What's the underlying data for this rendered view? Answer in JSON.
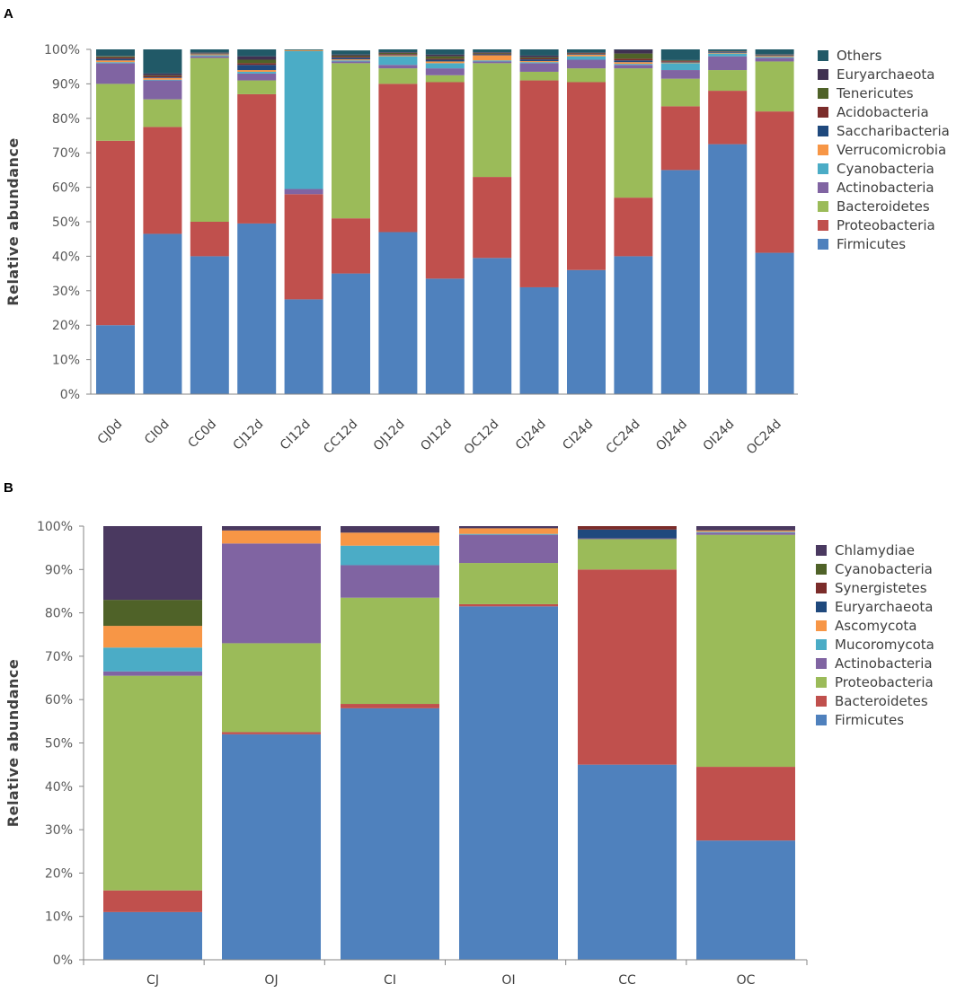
{
  "chart_data": [
    {
      "panel": "A",
      "type": "bar",
      "stacked": true,
      "title": "",
      "xlabel": "",
      "ylabel": "Relative abundance",
      "ylim": [
        0,
        100
      ],
      "yticks": [
        "0%",
        "10%",
        "20%",
        "30%",
        "40%",
        "50%",
        "60%",
        "70%",
        "80%",
        "90%",
        "100%"
      ],
      "legend_position": "right",
      "categories": [
        "CJ0d",
        "CI0d",
        "CC0d",
        "CJ12d",
        "CI12d",
        "CC12d",
        "OJ12d",
        "OI12d",
        "OC12d",
        "CJ24d",
        "CI24d",
        "CC24d",
        "OJ24d",
        "OI24d",
        "OC24d"
      ],
      "series": [
        {
          "name": "Firmicutes",
          "color": "#4F81BD",
          "values": [
            20,
            46.5,
            40,
            49.5,
            27.5,
            35,
            47,
            33.5,
            39.5,
            31,
            36,
            40,
            65,
            72.5,
            41
          ]
        },
        {
          "name": "Proteobacteria",
          "color": "#C0504D",
          "values": [
            53.5,
            31,
            10,
            37.5,
            30.5,
            16,
            43,
            57,
            23.5,
            60,
            54.5,
            17,
            18.5,
            15.5,
            41
          ]
        },
        {
          "name": "Bacteroidetes",
          "color": "#9BBB59",
          "values": [
            16.5,
            8,
            47.5,
            4,
            0,
            45,
            4.5,
            2,
            33,
            2.5,
            4,
            37.5,
            8,
            6,
            14.5
          ]
        },
        {
          "name": "Actinobacteria",
          "color": "#8064A2",
          "values": [
            6,
            5.5,
            0.5,
            2,
            1.5,
            0.5,
            1,
            2,
            0.5,
            2.5,
            2.5,
            1,
            2.5,
            4,
            1
          ]
        },
        {
          "name": "Cyanobacteria",
          "color": "#4BACC6",
          "values": [
            0.3,
            0.2,
            0.3,
            0.5,
            40,
            0.3,
            2.5,
            1.5,
            0.3,
            0.3,
            1,
            0.3,
            2,
            0.8,
            0.3
          ]
        },
        {
          "name": "Verrucomicrobia",
          "color": "#F79646",
          "values": [
            0.5,
            0.5,
            0.3,
            0.5,
            0.2,
            0.3,
            0.3,
            0.5,
            1.5,
            0.3,
            0.5,
            0.5,
            0.2,
            0.2,
            0.3
          ]
        },
        {
          "name": "Saccharibacteria",
          "color": "#1F497D",
          "values": [
            0.5,
            0.2,
            0.2,
            1.5,
            0,
            0.5,
            0.2,
            0.5,
            0.3,
            0.5,
            0.2,
            0.5,
            0.2,
            0.2,
            0.2
          ]
        },
        {
          "name": "Acidobacteria",
          "color": "#7B2C2A",
          "values": [
            0.4,
            0.4,
            0.1,
            0.5,
            0,
            0.3,
            0.2,
            0.3,
            0.2,
            0.3,
            0.2,
            0.5,
            0.2,
            0.1,
            0.1
          ]
        },
        {
          "name": "Tenericutes",
          "color": "#4F6228",
          "values": [
            0.3,
            0.2,
            0.1,
            1,
            0.1,
            0.3,
            0.3,
            0.7,
            0.2,
            0.3,
            0.1,
            1.5,
            0.2,
            0.1,
            0.1
          ]
        },
        {
          "name": "Euryarchaeota",
          "color": "#403151",
          "values": [
            0.1,
            0.5,
            0.1,
            1,
            0,
            0.3,
            0.2,
            0.5,
            0.2,
            0.5,
            0.1,
            1.5,
            0.1,
            0.1,
            0.1
          ]
        },
        {
          "name": "Others",
          "color": "#215967",
          "values": [
            2,
            8,
            1,
            2,
            0.2,
            1.2,
            1.3,
            1.5,
            1.3,
            2.5,
            1.5,
            0.2,
            3.6,
            1,
            1.5
          ]
        }
      ]
    },
    {
      "panel": "B",
      "type": "bar",
      "stacked": true,
      "title": "",
      "xlabel": "",
      "ylabel": "Relative abundance",
      "ylim": [
        0,
        100
      ],
      "yticks": [
        "0%",
        "10%",
        "20%",
        "30%",
        "40%",
        "50%",
        "60%",
        "70%",
        "80%",
        "90%",
        "100%"
      ],
      "legend_position": "right",
      "categories": [
        "CJ",
        "OJ",
        "CI",
        "OI",
        "CC",
        "OC"
      ],
      "series": [
        {
          "name": "Firmicutes",
          "color": "#4F81BD",
          "values": [
            11,
            52,
            58,
            81.5,
            45,
            27.5
          ]
        },
        {
          "name": "Bacteroidetes",
          "color": "#C0504D",
          "values": [
            5,
            0.5,
            1,
            0.5,
            45,
            17
          ]
        },
        {
          "name": "Proteobacteria",
          "color": "#9BBB59",
          "values": [
            49.5,
            20.5,
            24.5,
            9.5,
            7,
            53.5
          ]
        },
        {
          "name": "Actinobacteria",
          "color": "#8064A2",
          "values": [
            1,
            23,
            7.5,
            6.5,
            0.2,
            0.5
          ]
        },
        {
          "name": "Mucoromycota",
          "color": "#4BACC6",
          "values": [
            5.5,
            0,
            4.5,
            0.2,
            0,
            0.2
          ]
        },
        {
          "name": "Ascomycota",
          "color": "#F79646",
          "values": [
            5,
            3,
            3,
            1.3,
            0,
            0.3
          ]
        },
        {
          "name": "Euryarchaeota",
          "color": "#1F497D",
          "values": [
            0,
            0,
            0,
            0,
            2,
            0
          ]
        },
        {
          "name": "Synergistetes",
          "color": "#7B2C2A",
          "values": [
            0,
            0,
            0,
            0,
            0.8,
            0
          ]
        },
        {
          "name": "Cyanobacteria",
          "color": "#4F6228",
          "values": [
            6,
            0,
            0,
            0,
            0,
            0
          ]
        },
        {
          "name": "Chlamydiae",
          "color": "#4A3960",
          "values": [
            17,
            1,
            1.5,
            0.5,
            0,
            1
          ]
        }
      ]
    }
  ]
}
